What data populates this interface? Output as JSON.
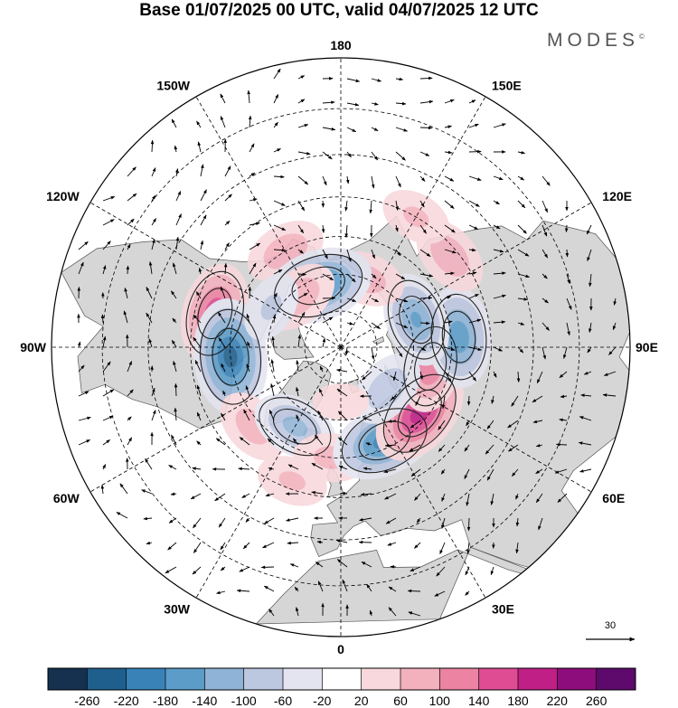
{
  "title": "Base 01/07/2025 00 UTC, valid 04/07/2025 12 UTC",
  "brand": "MODES",
  "brand_mark": "©",
  "projection": "north polar stereographic",
  "longitude_labels": [
    {
      "text": "180",
      "lon": 180
    },
    {
      "text": "150E",
      "lon": 150
    },
    {
      "text": "120E",
      "lon": 120
    },
    {
      "text": "90E",
      "lon": 90
    },
    {
      "text": "60E",
      "lon": 60
    },
    {
      "text": "30E",
      "lon": 30
    },
    {
      "text": "0",
      "lon": 0
    },
    {
      "text": "30W",
      "lon": -30
    },
    {
      "text": "60W",
      "lon": -60
    },
    {
      "text": "90W",
      "lon": -90
    },
    {
      "text": "120W",
      "lon": -120
    },
    {
      "text": "150W",
      "lon": -150
    }
  ],
  "reference_vector": {
    "label": "30"
  },
  "colorbar": {
    "ticks": [
      "-260",
      "-220",
      "-180",
      "-140",
      "-100",
      "-60",
      "-20",
      "20",
      "60",
      "100",
      "140",
      "180",
      "220",
      "260"
    ],
    "colors": [
      "#15314f",
      "#1f5f8d",
      "#3882b8",
      "#5c9cc9",
      "#8fb3d6",
      "#bcc7e0",
      "#e3e4f0",
      "#ffffff",
      "#f8d8dc",
      "#f3b1bd",
      "#ec83a3",
      "#df4c94",
      "#c01f86",
      "#8c0d7b",
      "#5d0a6c"
    ]
  },
  "anomalies": [
    {
      "lat": 55,
      "lon": -105,
      "value": 170
    },
    {
      "lat": 60,
      "lon": -85,
      "value": -240
    },
    {
      "lat": 60,
      "lon": -150,
      "value": 90
    },
    {
      "lat": 58,
      "lon": -48,
      "value": 80
    },
    {
      "lat": 65,
      "lon": -30,
      "value": -110
    },
    {
      "lat": 52,
      "lon": -20,
      "value": 60
    },
    {
      "lat": 60,
      "lon": -5,
      "value": 70
    },
    {
      "lat": 62,
      "lon": 25,
      "value": -200
    },
    {
      "lat": 62,
      "lon": 50,
      "value": 200
    },
    {
      "lat": 65,
      "lon": 78,
      "value": 130
    },
    {
      "lat": 58,
      "lon": 95,
      "value": -170
    },
    {
      "lat": 68,
      "lon": 110,
      "value": -140
    },
    {
      "lat": 52,
      "lon": 130,
      "value": 90
    },
    {
      "lat": 70,
      "lon": 160,
      "value": 80
    },
    {
      "lat": 72,
      "lon": -160,
      "value": -210
    },
    {
      "lat": 72,
      "lon": -140,
      "value": 90
    },
    {
      "lat": 73,
      "lon": 48,
      "value": -90
    },
    {
      "lat": 50,
      "lon": 150,
      "value": 60
    },
    {
      "lat": 68,
      "lon": -120,
      "value": -60
    },
    {
      "lat": 75,
      "lon": 0,
      "value": 30
    }
  ],
  "colors": {
    "land": "#d6d6d6",
    "ocean": "#ffffff",
    "grid": "#000000"
  }
}
